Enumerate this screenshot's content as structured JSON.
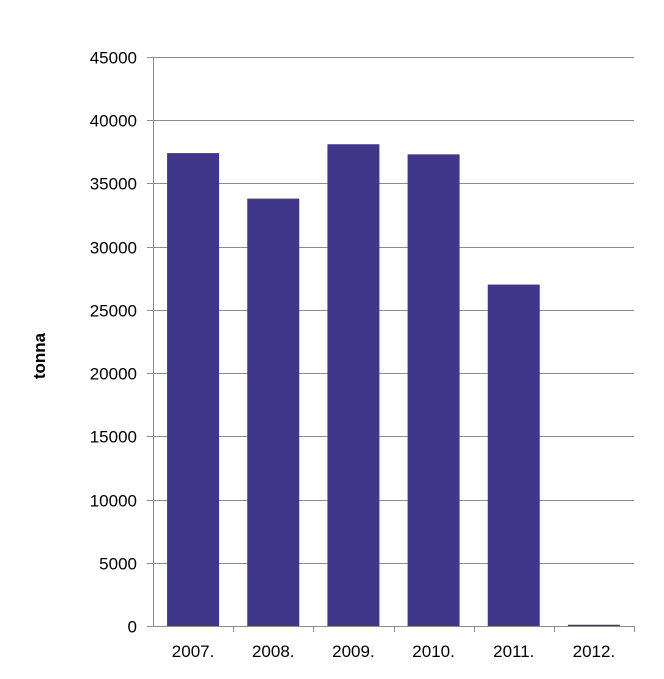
{
  "chart_data": {
    "type": "bar",
    "categories": [
      "2007.",
      "2008.",
      "2009.",
      "2010.",
      "2011.",
      "2012."
    ],
    "values": [
      37400,
      33800,
      38100,
      37300,
      27000,
      100
    ],
    "title": "",
    "xlabel": "",
    "ylabel": "tonna",
    "ylim": [
      0,
      45000
    ],
    "yticks": [
      0,
      5000,
      10000,
      15000,
      20000,
      25000,
      30000,
      35000,
      40000,
      45000
    ],
    "grid": true,
    "bar_color": "#41378a",
    "grid_color": "#8c8c8c"
  }
}
